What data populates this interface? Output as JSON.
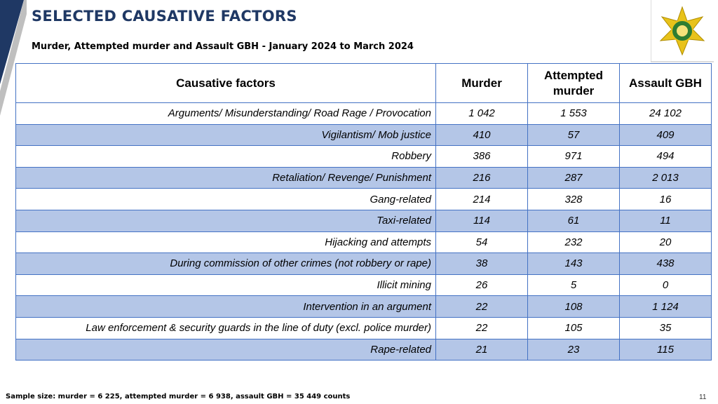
{
  "header": {
    "title": "SELECTED CAUSATIVE FACTORS",
    "subtitle": "Murder, Attempted murder and Assault GBH - January 2024 to March 2024"
  },
  "table": {
    "headers": [
      "Causative factors",
      "Murder",
      "Attempted murder",
      "Assault GBH"
    ],
    "rows": [
      [
        "Arguments/ Misunderstanding/ Road Rage / Provocation",
        "1 042",
        "1 553",
        "24 102"
      ],
      [
        "Vigilantism/ Mob justice",
        "410",
        "57",
        "409"
      ],
      [
        "Robbery",
        "386",
        "971",
        "494"
      ],
      [
        "Retaliation/ Revenge/ Punishment",
        "216",
        "287",
        "2 013"
      ],
      [
        "Gang-related",
        "214",
        "328",
        "16"
      ],
      [
        "Taxi-related",
        "114",
        "61",
        "11"
      ],
      [
        "Hijacking and attempts",
        "54",
        "232",
        "20"
      ],
      [
        "During commission of other crimes (not robbery or rape)",
        "38",
        "143",
        "438"
      ],
      [
        "Illicit mining",
        "26",
        "5",
        "0"
      ],
      [
        "Intervention in an argument",
        "22",
        "108",
        "1 124"
      ],
      [
        "Law enforcement & security guards in the line of duty (excl. police murder)",
        "22",
        "105",
        "35"
      ],
      [
        "Rape-related",
        "21",
        "23",
        "115"
      ]
    ]
  },
  "footer": {
    "note": "Sample size: murder = 6 225, attempted murder = 6 938, assault GBH = 35 449 counts",
    "page": "11"
  }
}
